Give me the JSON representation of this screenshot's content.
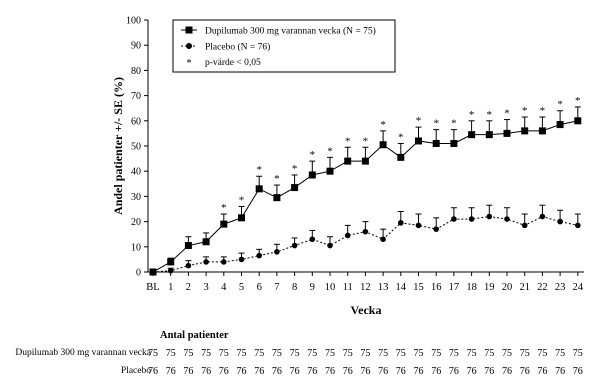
{
  "chart_data": {
    "type": "line",
    "categories": [
      "BL",
      "1",
      "2",
      "3",
      "4",
      "5",
      "6",
      "7",
      "8",
      "9",
      "10",
      "11",
      "12",
      "13",
      "14",
      "15",
      "16",
      "17",
      "18",
      "19",
      "20",
      "21",
      "22",
      "23",
      "24"
    ],
    "xlabel": "Vecka",
    "ylabel": "Andel patienter +/- SE (%)",
    "ylim": [
      0,
      100
    ],
    "yticks": [
      "0",
      "10",
      "20",
      "30",
      "40",
      "50",
      "60",
      "70",
      "80",
      "90",
      "100"
    ],
    "grid": false,
    "legend_position": "top-left",
    "series": [
      {
        "name": "Dupilumab 300 mg varannan vecka (N = 75)",
        "marker": "square",
        "line_style": "solid",
        "values": [
          0,
          4,
          10.5,
          12,
          19,
          21.5,
          33,
          29.5,
          33.5,
          38.5,
          40,
          44,
          44,
          50.5,
          45.5,
          52,
          51,
          51,
          54.5,
          54.5,
          55,
          56,
          56,
          58.5,
          60
        ],
        "errors": [
          0,
          1.5,
          3.5,
          3.5,
          4,
          4.5,
          5,
          5,
          5,
          5.5,
          5.5,
          5.5,
          5.5,
          5.5,
          5.5,
          5.5,
          5.5,
          5.5,
          5.5,
          5.5,
          5.5,
          5.5,
          5.5,
          5.5,
          5.5
        ]
      },
      {
        "name": "Placebo (N = 76)",
        "marker": "circle",
        "line_style": "dashed",
        "values": [
          0,
          0.5,
          2.5,
          4,
          4,
          5,
          6.5,
          8,
          10.5,
          13,
          10.5,
          14.5,
          16,
          13,
          19.5,
          18.5,
          17,
          21,
          21,
          22,
          21,
          18.5,
          22,
          20,
          18.5
        ],
        "errors": [
          0,
          1,
          2,
          2,
          2,
          2.5,
          2.5,
          3,
          3,
          3.5,
          3.5,
          4,
          4,
          4,
          4.5,
          4.5,
          4.5,
          4.5,
          4.5,
          4.5,
          4.5,
          4.5,
          4.5,
          4.5,
          4.5
        ]
      }
    ],
    "significance_weeks": [
      "4",
      "5",
      "6",
      "7",
      "8",
      "9",
      "10",
      "11",
      "12",
      "13",
      "14",
      "15",
      "16",
      "17",
      "18",
      "19",
      "20",
      "21",
      "22",
      "23",
      "24"
    ],
    "significance_symbol": "*",
    "legend_entries": [
      {
        "label": "Dupilumab 300 mg varannan vecka (N = 75)",
        "marker": "square"
      },
      {
        "label": "Placebo (N = 76)",
        "marker": "circle"
      },
      {
        "label": "p-värde < 0,05",
        "marker": "asterisk"
      }
    ]
  },
  "risk_table": {
    "title": "Antal patienter",
    "rows": [
      {
        "label": "Dupilumab 300 mg varannan vecka",
        "values": [
          "75",
          "75",
          "75",
          "75",
          "75",
          "75",
          "75",
          "75",
          "75",
          "75",
          "75",
          "75",
          "75",
          "75",
          "75",
          "75",
          "75",
          "75",
          "75",
          "75",
          "75",
          "75",
          "75",
          "75",
          "75"
        ]
      },
      {
        "label": "Placebo",
        "values": [
          "76",
          "76",
          "76",
          "76",
          "76",
          "76",
          "76",
          "76",
          "76",
          "76",
          "76",
          "76",
          "76",
          "76",
          "76",
          "76",
          "76",
          "76",
          "76",
          "76",
          "76",
          "76",
          "76",
          "76",
          "76"
        ]
      }
    ]
  }
}
